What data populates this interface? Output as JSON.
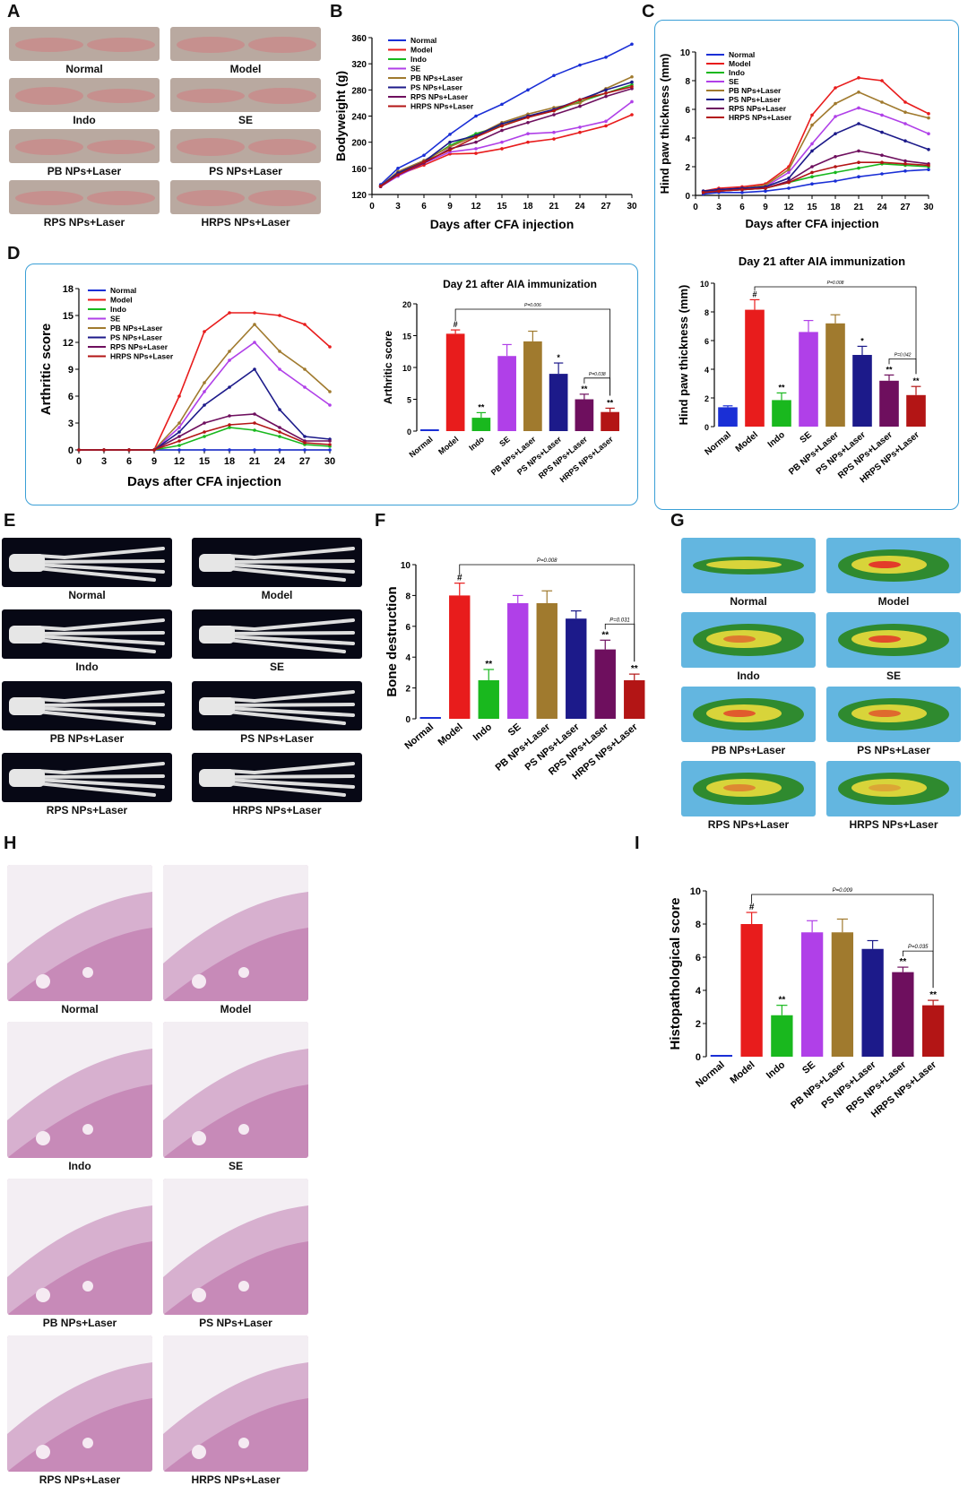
{
  "panel_letters": {
    "A": "A",
    "B": "B",
    "C": "C",
    "D": "D",
    "E": "E",
    "F": "F",
    "G": "G",
    "H": "H",
    "I": "I"
  },
  "groups": [
    "Normal",
    "Model",
    "Indo",
    "SE",
    "PB NPs+Laser",
    "PS NPs+Laser",
    "RPS NPs+Laser",
    "HRPS NPs+Laser"
  ],
  "colors": {
    "Normal": "#1a2fd6",
    "Model": "#e81c1c",
    "Indo": "#19b81e",
    "SE": "#b040e8",
    "PB NPs+Laser": "#a07a2e",
    "PS NPs+Laser": "#1c1a8a",
    "RPS NPs+Laser": "#6e0f5e",
    "HRPS NPs+Laser": "#b31515",
    "box_border": "#3a9fd6",
    "photo_paw": "#b9a9a0",
    "photo_ct": "#070815",
    "photo_thermal": "#63b6e0",
    "photo_he": "#d7b0cf"
  },
  "panelA": {
    "labels": [
      "Normal",
      "Model",
      "Indo",
      "SE",
      "PB NPs+Laser",
      "PS NPs+Laser",
      "RPS NPs+Laser",
      "HRPS NPs+Laser"
    ]
  },
  "panelE": {
    "labels": [
      "Normal",
      "Model",
      "Indo",
      "SE",
      "PB NPs+Laser",
      "PS NPs+Laser",
      "RPS NPs+Laser",
      "HRPS NPs+Laser"
    ]
  },
  "panelG": {
    "labels": [
      "Normal",
      "Model",
      "Indo",
      "SE",
      "PB NPs+Laser",
      "PS NPs+Laser",
      "RPS NPs+Laser",
      "HRPS NPs+Laser"
    ]
  },
  "panelH": {
    "labels": [
      "Normal",
      "Model",
      "Indo",
      "SE",
      "PB NPs+Laser",
      "PS NPs+Laser",
      "RPS NPs+Laser",
      "HRPS NPs+Laser"
    ]
  },
  "chart_data": [
    {
      "id": "B",
      "type": "line",
      "xlabel": "Days after CFA injection",
      "ylabel": "Bodyweight (g)",
      "x": [
        1,
        3,
        6,
        9,
        12,
        15,
        18,
        21,
        24,
        27,
        30
      ],
      "xticks": [
        0,
        3,
        6,
        9,
        12,
        15,
        18,
        21,
        24,
        27,
        30
      ],
      "ylim": [
        120,
        360
      ],
      "yticks": [
        120,
        160,
        200,
        240,
        280,
        320,
        360
      ],
      "legend": "top-left",
      "series": [
        {
          "name": "Normal",
          "values": [
            135,
            160,
            180,
            212,
            240,
            258,
            280,
            302,
            318,
            330,
            350
          ]
        },
        {
          "name": "Model",
          "values": [
            132,
            150,
            165,
            182,
            183,
            190,
            200,
            205,
            215,
            225,
            242
          ]
        },
        {
          "name": "Indo",
          "values": [
            133,
            152,
            170,
            195,
            213,
            225,
            240,
            248,
            262,
            275,
            288
          ]
        },
        {
          "name": "SE",
          "values": [
            132,
            148,
            168,
            185,
            190,
            200,
            213,
            215,
            223,
            232,
            262
          ]
        },
        {
          "name": "PB NPs+Laser",
          "values": [
            133,
            155,
            172,
            193,
            210,
            230,
            243,
            253,
            260,
            282,
            300
          ]
        },
        {
          "name": "PS NPs+Laser",
          "values": [
            133,
            153,
            170,
            200,
            210,
            228,
            240,
            250,
            265,
            280,
            292
          ]
        },
        {
          "name": "RPS NPs+Laser",
          "values": [
            132,
            150,
            168,
            190,
            200,
            218,
            230,
            242,
            255,
            270,
            282
          ]
        },
        {
          "name": "HRPS NPs+Laser",
          "values": [
            133,
            150,
            170,
            188,
            208,
            225,
            238,
            248,
            265,
            275,
            285
          ]
        }
      ]
    },
    {
      "id": "C-top",
      "type": "line",
      "xlabel": "Days after CFA injection",
      "ylabel": "Hind paw thickness (mm)",
      "x": [
        1,
        3,
        6,
        9,
        12,
        15,
        18,
        21,
        24,
        27,
        30
      ],
      "xticks": [
        0,
        3,
        6,
        9,
        12,
        15,
        18,
        21,
        24,
        27,
        30
      ],
      "ylim": [
        0,
        10
      ],
      "yticks": [
        0,
        2,
        4,
        6,
        8,
        10
      ],
      "legend": "top-left",
      "series": [
        {
          "name": "Normal",
          "values": [
            0.1,
            0.2,
            0.2,
            0.3,
            0.5,
            0.8,
            1.0,
            1.3,
            1.5,
            1.7,
            1.8
          ]
        },
        {
          "name": "Model",
          "values": [
            0.3,
            0.5,
            0.6,
            0.8,
            2.0,
            5.6,
            7.5,
            8.2,
            8.0,
            6.5,
            5.7
          ]
        },
        {
          "name": "Indo",
          "values": [
            0.2,
            0.3,
            0.4,
            0.5,
            0.9,
            1.3,
            1.6,
            1.9,
            2.2,
            2.1,
            2.0
          ]
        },
        {
          "name": "SE",
          "values": [
            0.3,
            0.4,
            0.5,
            0.6,
            1.6,
            3.6,
            5.5,
            6.1,
            5.6,
            5.0,
            4.3
          ]
        },
        {
          "name": "PB NPs+Laser",
          "values": [
            0.3,
            0.4,
            0.5,
            0.7,
            1.8,
            4.9,
            6.4,
            7.2,
            6.5,
            5.8,
            5.4
          ]
        },
        {
          "name": "PS NPs+Laser",
          "values": [
            0.3,
            0.4,
            0.5,
            0.6,
            1.2,
            3.1,
            4.3,
            5.0,
            4.4,
            3.8,
            3.2
          ]
        },
        {
          "name": "RPS NPs+Laser",
          "values": [
            0.2,
            0.3,
            0.4,
            0.5,
            1.0,
            2.0,
            2.7,
            3.1,
            2.8,
            2.4,
            2.2
          ]
        },
        {
          "name": "HRPS NPs+Laser",
          "values": [
            0.2,
            0.3,
            0.4,
            0.5,
            0.9,
            1.6,
            2.0,
            2.3,
            2.3,
            2.2,
            2.1
          ]
        }
      ]
    },
    {
      "id": "C-bottom",
      "type": "bar",
      "title": "Day 21 after AIA immunization",
      "ylabel": "Hind paw thickness (mm)",
      "categories": [
        "Normal",
        "Model",
        "Indo",
        "SE",
        "PB NPs+Laser",
        "PS NPs+Laser",
        "RPS NPs+Laser",
        "HRPS NPs+Laser"
      ],
      "values": [
        1.35,
        8.15,
        1.85,
        6.6,
        7.2,
        5.0,
        3.2,
        2.2
      ],
      "errors": [
        0.1,
        0.7,
        0.5,
        0.8,
        0.6,
        0.6,
        0.4,
        0.6
      ],
      "marks": [
        "",
        "#",
        "**",
        "",
        "",
        "*",
        "**",
        "**"
      ],
      "ylim": [
        0,
        10
      ],
      "yticks": [
        0,
        2,
        4,
        6,
        8,
        10
      ],
      "pvalues": [
        {
          "text": "P=0.008",
          "from": 1,
          "to": 7
        },
        {
          "text": "P=0.042",
          "from": 6,
          "to": 7
        }
      ]
    },
    {
      "id": "D-left",
      "type": "line",
      "xlabel": "Days after CFA injection",
      "ylabel": "Arthritic score",
      "x": [
        0,
        3,
        6,
        9,
        12,
        15,
        18,
        21,
        24,
        27,
        30
      ],
      "xticks": [
        0,
        3,
        6,
        9,
        12,
        15,
        18,
        21,
        24,
        27,
        30
      ],
      "ylim": [
        0,
        18
      ],
      "yticks": [
        0,
        3,
        6,
        9,
        12,
        15,
        18
      ],
      "legend": "top-left",
      "series": [
        {
          "name": "Normal",
          "values": [
            0,
            0,
            0,
            0,
            0,
            0,
            0,
            0,
            0,
            0,
            0
          ]
        },
        {
          "name": "Model",
          "values": [
            0,
            0,
            0,
            0,
            6,
            13.2,
            15.3,
            15.3,
            15,
            14,
            11.5
          ]
        },
        {
          "name": "Indo",
          "values": [
            0,
            0,
            0,
            0,
            0.5,
            1.5,
            2.5,
            2.2,
            1.5,
            0.6,
            0.4
          ]
        },
        {
          "name": "SE",
          "values": [
            0,
            0,
            0,
            0,
            2.5,
            6.5,
            10,
            12,
            9,
            7,
            5
          ]
        },
        {
          "name": "PB NPs+Laser",
          "values": [
            0,
            0,
            0,
            0,
            3,
            7.5,
            11,
            14,
            11,
            9,
            6.5
          ]
        },
        {
          "name": "PS NPs+Laser",
          "values": [
            0,
            0,
            0,
            0,
            2,
            5,
            7,
            9,
            4.5,
            1.5,
            1.2
          ]
        },
        {
          "name": "RPS NPs+Laser",
          "values": [
            0,
            0,
            0,
            0,
            1.5,
            3,
            3.8,
            4,
            2.5,
            1,
            1
          ]
        },
        {
          "name": "HRPS NPs+Laser",
          "values": [
            0,
            0,
            0,
            0,
            1,
            2,
            2.8,
            3,
            2,
            0.8,
            0.6
          ]
        }
      ]
    },
    {
      "id": "D-right",
      "type": "bar",
      "title": "Day 21 after AIA immunization",
      "ylabel": "Arthritic score",
      "categories": [
        "Normal",
        "Model",
        "Indo",
        "SE",
        "PB NPs+Laser",
        "PS NPs+Laser",
        "RPS NPs+Laser",
        "HRPS NPs+Laser"
      ],
      "values": [
        0,
        15.3,
        2.1,
        11.8,
        14.1,
        9.0,
        5.0,
        3.0
      ],
      "errors": [
        0,
        0.6,
        0.8,
        1.8,
        1.6,
        1.7,
        0.8,
        0.6
      ],
      "marks": [
        "",
        "#",
        "**",
        "",
        "",
        "*",
        "**",
        "**"
      ],
      "ylim": [
        0,
        20
      ],
      "yticks": [
        0,
        5,
        10,
        15,
        20
      ],
      "pvalues": [
        {
          "text": "P=0.006",
          "from": 1,
          "to": 7
        },
        {
          "text": "P=0.038",
          "from": 6,
          "to": 7
        }
      ]
    },
    {
      "id": "F",
      "type": "bar",
      "ylabel": "Bone destruction",
      "categories": [
        "Normal",
        "Model",
        "Indo",
        "SE",
        "PB NPs+Laser",
        "PS NPs+Laser",
        "RPS NPs+Laser",
        "HRPS NPs+Laser"
      ],
      "values": [
        0,
        8.0,
        2.5,
        7.5,
        7.5,
        6.5,
        4.5,
        2.5
      ],
      "errors": [
        0.05,
        0.8,
        0.7,
        0.5,
        0.8,
        0.5,
        0.6,
        0.4
      ],
      "marks": [
        "",
        "#",
        "**",
        "",
        "",
        "",
        "**",
        "**"
      ],
      "ylim": [
        0,
        10
      ],
      "yticks": [
        0,
        2,
        4,
        6,
        8,
        10
      ],
      "pvalues": [
        {
          "text": "P=0.008",
          "from": 1,
          "to": 7
        },
        {
          "text": "P=0.031",
          "from": 6,
          "to": 7
        }
      ]
    },
    {
      "id": "I",
      "type": "bar",
      "ylabel": "Histopathological score",
      "categories": [
        "Normal",
        "Model",
        "Indo",
        "SE",
        "PB NPs+Laser",
        "PS NPs+Laser",
        "RPS NPs+Laser",
        "HRPS NPs+Laser"
      ],
      "values": [
        0,
        8.0,
        2.5,
        7.5,
        7.5,
        6.5,
        5.1,
        3.1
      ],
      "errors": [
        0.05,
        0.7,
        0.6,
        0.7,
        0.8,
        0.5,
        0.3,
        0.3
      ],
      "marks": [
        "",
        "#",
        "**",
        "",
        "",
        "",
        "**",
        "**"
      ],
      "ylim": [
        0,
        10
      ],
      "yticks": [
        0,
        2,
        4,
        6,
        8,
        10
      ],
      "pvalues": [
        {
          "text": "P=0.009",
          "from": 1,
          "to": 7
        },
        {
          "text": "P=0.035",
          "from": 6,
          "to": 7
        }
      ]
    }
  ]
}
